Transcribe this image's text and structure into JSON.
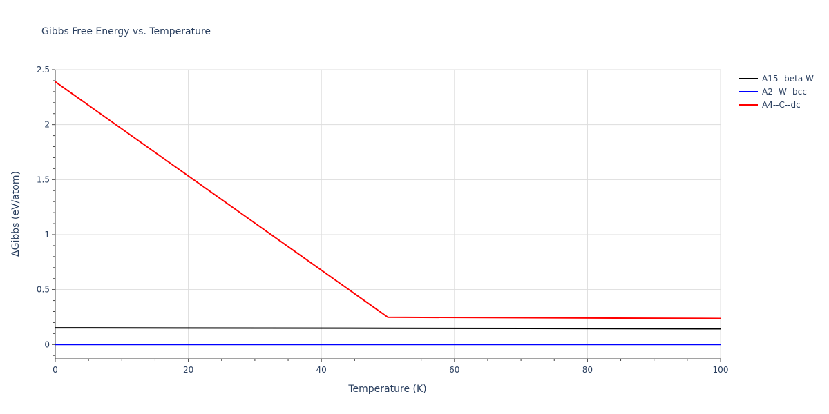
{
  "chart_data": {
    "type": "line",
    "title": "Gibbs Free Energy vs. Temperature",
    "xlabel": "Temperature (K)",
    "ylabel": "ΔGibbs (eV/atom)",
    "xlim": [
      0,
      100
    ],
    "ylim": [
      -0.13,
      2.5
    ],
    "x_ticks": [
      0,
      20,
      40,
      60,
      80,
      100
    ],
    "x_tick_labels": [
      "0",
      "20",
      "40",
      "60",
      "80",
      "100"
    ],
    "x_minor_ticks": [
      5,
      10,
      15,
      25,
      30,
      35,
      45,
      50,
      55,
      65,
      70,
      75,
      85,
      90,
      95
    ],
    "y_ticks": [
      0,
      0.5,
      1,
      1.5,
      2,
      2.5
    ],
    "y_tick_labels": [
      "0",
      "0.5",
      "1",
      "1.5",
      "2",
      "2.5"
    ],
    "y_minor_ticks": [
      -0.1,
      0.1,
      0.2,
      0.3,
      0.4,
      0.6,
      0.7,
      0.8,
      0.9,
      1.1,
      1.2,
      1.3,
      1.4,
      1.6,
      1.7,
      1.8,
      1.9,
      2.1,
      2.2,
      2.3,
      2.4
    ],
    "grid": true,
    "legend_position": "top-right",
    "series": [
      {
        "name": "A15--beta-W",
        "color": "#000000",
        "x": [
          0,
          50,
          100
        ],
        "y": [
          0.152,
          0.148,
          0.143
        ]
      },
      {
        "name": "A2--W--bcc",
        "color": "#0000ff",
        "x": [
          0,
          100
        ],
        "y": [
          0,
          0
        ]
      },
      {
        "name": "A4--C--dc",
        "color": "#ff0000",
        "x": [
          0,
          50,
          100
        ],
        "y": [
          2.39,
          0.248,
          0.237
        ]
      }
    ]
  }
}
